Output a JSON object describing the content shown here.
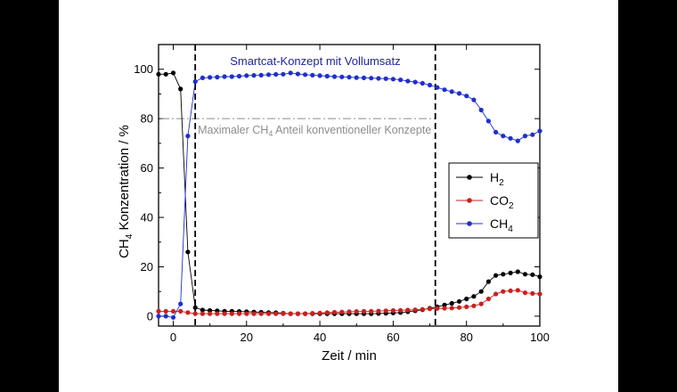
{
  "chart_data": {
    "type": "line",
    "xlabel": "Zeit / min",
    "ylabel": {
      "pre": "CH",
      "sub": "4",
      "post": " Konzentration / %"
    },
    "xlim": [
      -4,
      100
    ],
    "ylim": [
      -4,
      110
    ],
    "x_ticks": [
      0,
      20,
      40,
      60,
      80,
      100
    ],
    "y_ticks": [
      0,
      20,
      40,
      60,
      80,
      100
    ],
    "grid": false,
    "legend_position": "right-middle",
    "vlines": [
      6,
      71.5
    ],
    "reference_line": {
      "y": 80,
      "label_pre": "Maximaler CH",
      "label_sub": "4",
      "label_post": " Anteil konventioneller Konzepte",
      "color": "#8c8c8c"
    },
    "annotation": {
      "text": "Smartcat-Konzept mit Vollumsatz",
      "color": "#1f1fa0"
    },
    "series": [
      {
        "name_pre": "H",
        "name_sub": "2",
        "color": "#000000",
        "points": [
          [
            -4,
            98
          ],
          [
            -2,
            98
          ],
          [
            0,
            98.5
          ],
          [
            2,
            92
          ],
          [
            4,
            26
          ],
          [
            6,
            3.5
          ],
          [
            8,
            2.5
          ],
          [
            10,
            2.3
          ],
          [
            12,
            2.2
          ],
          [
            14,
            2
          ],
          [
            16,
            2
          ],
          [
            18,
            1.9
          ],
          [
            20,
            1.8
          ],
          [
            22,
            1.7
          ],
          [
            24,
            1.6
          ],
          [
            26,
            1.5
          ],
          [
            28,
            1.4
          ],
          [
            30,
            1.2
          ],
          [
            32,
            1
          ],
          [
            34,
            1
          ],
          [
            36,
            1
          ],
          [
            38,
            1
          ],
          [
            40,
            1
          ],
          [
            42,
            1
          ],
          [
            44,
            1
          ],
          [
            46,
            1
          ],
          [
            48,
            1
          ],
          [
            50,
            1
          ],
          [
            52,
            1
          ],
          [
            54,
            1
          ],
          [
            56,
            1.1
          ],
          [
            58,
            1.2
          ],
          [
            60,
            1.3
          ],
          [
            62,
            1.5
          ],
          [
            64,
            1.8
          ],
          [
            66,
            2.2
          ],
          [
            68,
            2.6
          ],
          [
            70,
            3.2
          ],
          [
            72,
            3.8
          ],
          [
            74,
            4.5
          ],
          [
            76,
            5.2
          ],
          [
            78,
            6
          ],
          [
            80,
            7
          ],
          [
            82,
            8
          ],
          [
            84,
            10
          ],
          [
            86,
            14
          ],
          [
            88,
            16.5
          ],
          [
            90,
            17
          ],
          [
            92,
            17.5
          ],
          [
            94,
            18
          ],
          [
            96,
            17
          ],
          [
            98,
            16.8
          ],
          [
            100,
            16
          ]
        ]
      },
      {
        "name_pre": "CO",
        "name_sub": "2",
        "color": "#cc1f1f",
        "points": [
          [
            -4,
            2
          ],
          [
            -2,
            2
          ],
          [
            0,
            2
          ],
          [
            2,
            2
          ],
          [
            4,
            1.5
          ],
          [
            6,
            1
          ],
          [
            8,
            1
          ],
          [
            10,
            1
          ],
          [
            12,
            1
          ],
          [
            14,
            1
          ],
          [
            16,
            1
          ],
          [
            18,
            1
          ],
          [
            20,
            1
          ],
          [
            22,
            1
          ],
          [
            24,
            1
          ],
          [
            26,
            1
          ],
          [
            28,
            1
          ],
          [
            30,
            1
          ],
          [
            32,
            1
          ],
          [
            34,
            1
          ],
          [
            36,
            1
          ],
          [
            38,
            1.2
          ],
          [
            40,
            1.3
          ],
          [
            42,
            1.5
          ],
          [
            44,
            1.6
          ],
          [
            46,
            1.7
          ],
          [
            48,
            1.8
          ],
          [
            50,
            1.9
          ],
          [
            52,
            2
          ],
          [
            54,
            2
          ],
          [
            56,
            2.1
          ],
          [
            58,
            2.2
          ],
          [
            60,
            2.3
          ],
          [
            62,
            2.4
          ],
          [
            64,
            2.5
          ],
          [
            66,
            2.6
          ],
          [
            68,
            2.8
          ],
          [
            70,
            3
          ],
          [
            72,
            3.1
          ],
          [
            74,
            3.2
          ],
          [
            76,
            3.3
          ],
          [
            78,
            3.5
          ],
          [
            80,
            3.8
          ],
          [
            82,
            4.2
          ],
          [
            84,
            5
          ],
          [
            86,
            7
          ],
          [
            88,
            9
          ],
          [
            90,
            10
          ],
          [
            92,
            10.3
          ],
          [
            94,
            10.5
          ],
          [
            96,
            9.5
          ],
          [
            98,
            9.2
          ],
          [
            100,
            9
          ]
        ]
      },
      {
        "name_pre": "CH",
        "name_sub": "4",
        "color": "#1f2fcc",
        "points": [
          [
            -4,
            0
          ],
          [
            -2,
            0
          ],
          [
            0,
            -0.5
          ],
          [
            2,
            5
          ],
          [
            4,
            73
          ],
          [
            6,
            95
          ],
          [
            8,
            96.5
          ],
          [
            10,
            96.7
          ],
          [
            12,
            96.8
          ],
          [
            14,
            97
          ],
          [
            16,
            97
          ],
          [
            18,
            97.2
          ],
          [
            20,
            97.4
          ],
          [
            22,
            97.5
          ],
          [
            24,
            97.6
          ],
          [
            26,
            97.8
          ],
          [
            28,
            97.9
          ],
          [
            30,
            98
          ],
          [
            32,
            98.5
          ],
          [
            34,
            98.1
          ],
          [
            36,
            97.8
          ],
          [
            38,
            97.6
          ],
          [
            40,
            97.4
          ],
          [
            42,
            97.2
          ],
          [
            44,
            97
          ],
          [
            46,
            96.9
          ],
          [
            48,
            96.8
          ],
          [
            50,
            96.6
          ],
          [
            52,
            96.5
          ],
          [
            54,
            96.4
          ],
          [
            56,
            96.3
          ],
          [
            58,
            96.2
          ],
          [
            60,
            96
          ],
          [
            62,
            95.7
          ],
          [
            64,
            95.2
          ],
          [
            66,
            94.8
          ],
          [
            68,
            94.3
          ],
          [
            70,
            93.6
          ],
          [
            72,
            92.6
          ],
          [
            74,
            91.7
          ],
          [
            76,
            90.9
          ],
          [
            78,
            90.2
          ],
          [
            80,
            89.2
          ],
          [
            82,
            87.6
          ],
          [
            84,
            83.5
          ],
          [
            86,
            79
          ],
          [
            88,
            74.5
          ],
          [
            90,
            73
          ],
          [
            92,
            72
          ],
          [
            94,
            71
          ],
          [
            96,
            73
          ],
          [
            98,
            73.5
          ],
          [
            100,
            75
          ]
        ]
      }
    ]
  }
}
